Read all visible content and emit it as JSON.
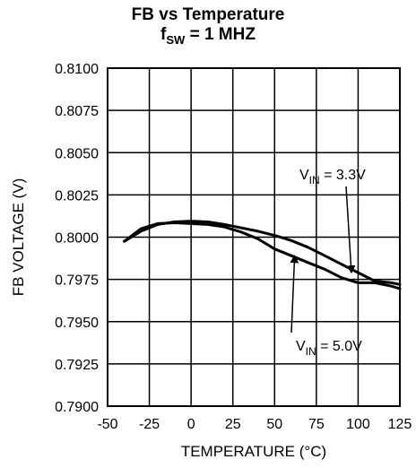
{
  "chart_data": {
    "type": "line",
    "title": "FB vs Temperature",
    "subtitle_prefix": "f",
    "subtitle_sub": "SW",
    "subtitle_suffix": " = 1 MHZ",
    "xlabel": "TEMPERATURE (°C)",
    "ylabel": "FB VOLTAGE (V)",
    "xlim": [
      -50,
      125
    ],
    "ylim": [
      0.79,
      0.81
    ],
    "x_ticks": [
      "-50",
      "-25",
      "0",
      "25",
      "50",
      "75",
      "100",
      "125"
    ],
    "y_ticks": [
      "0.8100",
      "0.8075",
      "0.8050",
      "0.8025",
      "0.8000",
      "0.7975",
      "0.7950",
      "0.7925",
      "0.7900"
    ],
    "grid": true,
    "series": [
      {
        "name": "V_IN = 3.3V",
        "x": [
          -40,
          -30,
          -20,
          -10,
          0,
          10,
          20,
          30,
          40,
          50,
          60,
          70,
          80,
          90,
          100,
          110,
          120,
          125
        ],
        "y": [
          0.79975,
          0.80035,
          0.80075,
          0.8009,
          0.80095,
          0.8009,
          0.80075,
          0.80055,
          0.80035,
          0.8001,
          0.7998,
          0.7994,
          0.7989,
          0.7984,
          0.7979,
          0.7974,
          0.7973,
          0.7972
        ]
      },
      {
        "name": "V_IN = 5.0V",
        "x": [
          -40,
          -30,
          -20,
          -10,
          0,
          10,
          20,
          30,
          40,
          50,
          60,
          70,
          80,
          90,
          100,
          110,
          120,
          125
        ],
        "y": [
          0.79975,
          0.8005,
          0.8008,
          0.80085,
          0.8008,
          0.80075,
          0.8006,
          0.8003,
          0.7999,
          0.7993,
          0.7989,
          0.7985,
          0.7981,
          0.7976,
          0.7973,
          0.7973,
          0.7971,
          0.79695
        ]
      }
    ],
    "annotations": [
      {
        "prefix": "V",
        "sub": "IN",
        "suffix": " = 3.3V",
        "arrow_to": [
          96,
          0.7979
        ]
      },
      {
        "prefix": "V",
        "sub": "IN",
        "suffix": " = 5.0V",
        "arrow_to": [
          62,
          0.7989
        ]
      }
    ]
  }
}
